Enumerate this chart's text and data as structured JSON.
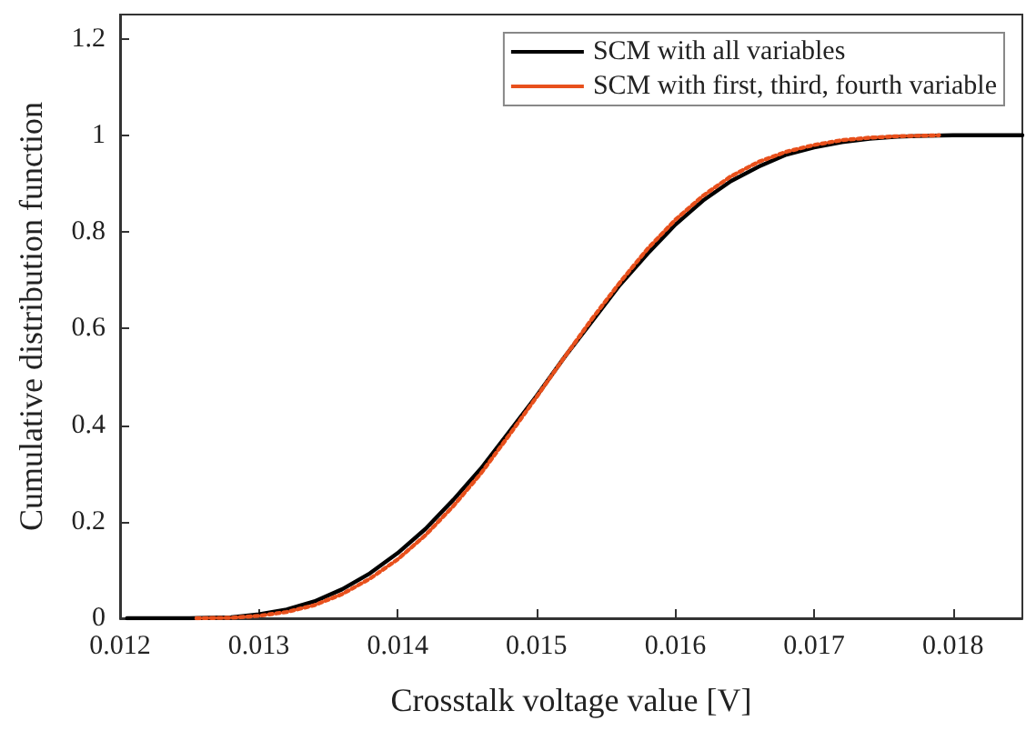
{
  "chart_data": {
    "type": "line",
    "xlabel": "Crosstalk voltage value [V]",
    "ylabel": "Cumulative distribution function",
    "xlim": [
      0.012,
      0.0185
    ],
    "xticks": [
      0.012,
      0.013,
      0.014,
      0.015,
      0.016,
      0.017,
      0.018
    ],
    "ylim": [
      0,
      1.25
    ],
    "yticks": [
      0,
      0.2,
      0.4,
      0.6,
      0.8,
      1,
      1.2
    ],
    "grid": false,
    "legend": "top right",
    "marker": "none",
    "series": [
      {
        "name": "SCM with all variables",
        "color": "#000000",
        "line_style": "solid",
        "x": [
          0.01205,
          0.0125,
          0.0128,
          0.013,
          0.0132,
          0.0134,
          0.0136,
          0.0138,
          0.014,
          0.0142,
          0.0144,
          0.0146,
          0.0148,
          0.015,
          0.0152,
          0.0154,
          0.0156,
          0.0158,
          0.016,
          0.0162,
          0.0164,
          0.0166,
          0.0168,
          0.017,
          0.0172,
          0.0174,
          0.0176,
          0.0178,
          0.018,
          0.0185
        ],
        "values": [
          0,
          0,
          0.002,
          0.008,
          0.018,
          0.035,
          0.06,
          0.093,
          0.135,
          0.185,
          0.245,
          0.31,
          0.385,
          0.46,
          0.54,
          0.615,
          0.69,
          0.755,
          0.815,
          0.865,
          0.905,
          0.935,
          0.96,
          0.975,
          0.986,
          0.993,
          0.997,
          0.999,
          1,
          1
        ]
      },
      {
        "name": "SCM with first, third, fourth variable",
        "color": "#e8501c",
        "line_style": "dotted",
        "x": [
          0.01255,
          0.0128,
          0.013,
          0.0132,
          0.0134,
          0.0136,
          0.0138,
          0.014,
          0.0142,
          0.0144,
          0.0146,
          0.0148,
          0.015,
          0.0152,
          0.0154,
          0.0156,
          0.0158,
          0.016,
          0.0162,
          0.0164,
          0.0166,
          0.0168,
          0.017,
          0.0172,
          0.0174,
          0.0176,
          0.0179
        ],
        "values": [
          0,
          0.001,
          0.005,
          0.013,
          0.027,
          0.05,
          0.082,
          0.122,
          0.172,
          0.232,
          0.3,
          0.378,
          0.458,
          0.54,
          0.62,
          0.695,
          0.765,
          0.825,
          0.875,
          0.915,
          0.945,
          0.966,
          0.98,
          0.99,
          0.995,
          0.998,
          1
        ]
      }
    ]
  }
}
